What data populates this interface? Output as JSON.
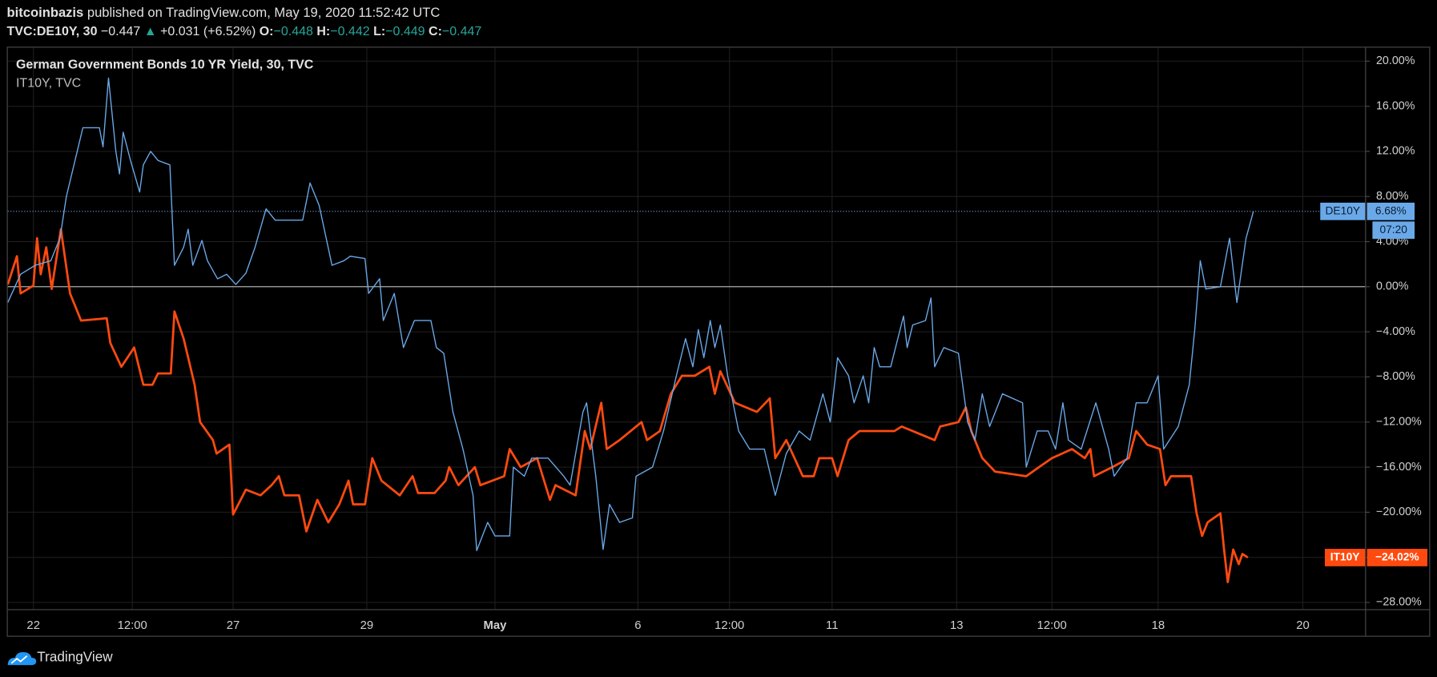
{
  "header": {
    "author": "bitcoinbazis",
    "published": "published on TradingView.com, May 19, 2020 11:52:42 UTC",
    "symbol": "TVC:DE10Y, 30",
    "last": "−0.447",
    "arrow": "▲",
    "change": "+0.031 (+6.52%)",
    "o_label": "O:",
    "o": "−0.448",
    "h_label": "H:",
    "h": "−0.442",
    "l_label": "L:",
    "l": "−0.449",
    "c_label": "C:",
    "c": "−0.447"
  },
  "footer": {
    "brand": "TradingView"
  },
  "chart_data": {
    "type": "line",
    "title": "German Government Bonds 10 YR Yield, 30, TVC",
    "subtitle": "IT10Y, TVC",
    "xlim": [
      0,
      741
    ],
    "xticks": [
      {
        "value": 14,
        "label": "22"
      },
      {
        "value": 68,
        "label": "12:00"
      },
      {
        "value": 123,
        "label": "27"
      },
      {
        "value": 196,
        "label": "29"
      },
      {
        "value": 266,
        "label": "May"
      },
      {
        "value": 344,
        "label": "6"
      },
      {
        "value": 394,
        "label": "12:00"
      },
      {
        "value": 450,
        "label": "11"
      },
      {
        "value": 518,
        "label": "13"
      },
      {
        "value": 570,
        "label": "12:00"
      },
      {
        "value": 628,
        "label": "18"
      },
      {
        "value": 707,
        "label": "20"
      }
    ],
    "ylim": [
      -28.6,
      21.2
    ],
    "yticks": [
      {
        "value": 20,
        "label": "20.00%"
      },
      {
        "value": 16,
        "label": "16.00%"
      },
      {
        "value": 12,
        "label": "12.00%"
      },
      {
        "value": 8,
        "label": "8.00%"
      },
      {
        "value": 4,
        "label": "4.00%"
      },
      {
        "value": 0,
        "label": "0.00%"
      },
      {
        "value": -4,
        "label": "−4.00%"
      },
      {
        "value": -8,
        "label": "−8.00%"
      },
      {
        "value": -12,
        "label": "−12.00%"
      },
      {
        "value": -16,
        "label": "−16.00%"
      },
      {
        "value": -20,
        "label": "−20.00%"
      },
      {
        "value": -24,
        "label": "−24.00%"
      },
      {
        "value": -28,
        "label": "−28.00%"
      }
    ],
    "grid": true,
    "series": [
      {
        "name": "DE10Y",
        "color": "#6aa9e9",
        "price_label": "6.68%",
        "countdown": "07:20",
        "x": [
          0,
          7,
          15,
          23.5,
          28.5,
          32,
          38.5,
          41,
          50,
          52,
          55,
          59,
          61,
          63,
          67,
          72,
          74,
          78,
          82,
          88.5,
          91,
          96,
          98.5,
          101,
          106,
          109,
          114.5,
          119.5,
          124.5,
          130,
          135,
          141,
          146,
          161,
          165,
          170,
          177,
          183.5,
          187,
          195,
          197,
          203,
          205,
          211,
          216,
          222,
          231,
          234,
          238,
          243,
          248.5,
          254,
          256,
          262,
          266,
          274,
          276,
          282,
          286,
          295,
          303.5,
          307,
          314,
          316,
          321,
          325,
          328.5,
          334,
          341,
          343,
          352,
          358,
          365,
          370,
          374,
          377,
          380,
          383.5,
          386,
          389,
          393,
          399,
          405,
          413,
          419,
          425,
          432,
          438,
          445,
          449,
          453,
          459,
          462,
          467,
          470,
          473,
          476,
          482,
          489,
          491,
          494,
          501,
          504,
          506,
          511,
          519,
          524,
          528,
          532,
          536,
          543,
          554,
          556,
          562,
          568,
          572,
          576,
          579,
          586,
          594,
          601,
          604,
          611,
          616,
          622,
          628,
          631,
          639,
          645,
          648,
          651,
          654,
          662,
          667,
          671,
          676,
          680
        ],
        "values": [
          -1.4,
          1.1,
          1.9,
          2.3,
          4.3,
          8.0,
          12.4,
          14.1,
          14.1,
          12.4,
          18.5,
          12.0,
          10.0,
          13.7,
          11.2,
          8.4,
          10.8,
          12.0,
          11.2,
          10.8,
          1.9,
          3.5,
          5.1,
          1.9,
          4.1,
          2.3,
          0.7,
          1.1,
          0.2,
          1.2,
          3.5,
          6.9,
          5.9,
          5.9,
          9.2,
          7.2,
          1.9,
          2.3,
          2.7,
          2.5,
          -0.6,
          0.7,
          -3.0,
          -0.6,
          -5.4,
          -3.0,
          -3.0,
          -5.4,
          -5.9,
          -11.1,
          -14.4,
          -18.5,
          -23.4,
          -20.9,
          -22.1,
          -22.1,
          -16.0,
          -16.8,
          -15.2,
          -15.2,
          -16.8,
          -17.6,
          -11.1,
          -10.3,
          -16.8,
          -23.3,
          -19.3,
          -20.9,
          -20.5,
          -16.8,
          -16.0,
          -12.8,
          -7.9,
          -4.6,
          -7.1,
          -3.8,
          -6.3,
          -3.0,
          -5.4,
          -3.4,
          -7.9,
          -12.8,
          -14.4,
          -14.4,
          -18.5,
          -14.8,
          -12.8,
          -13.6,
          -9.5,
          -12.0,
          -6.3,
          -7.9,
          -10.3,
          -7.9,
          -10.3,
          -5.4,
          -7.1,
          -7.1,
          -2.6,
          -5.4,
          -3.4,
          -3.0,
          -1.0,
          -7.1,
          -5.4,
          -5.9,
          -12.0,
          -13.6,
          -9.5,
          -12.4,
          -9.5,
          -10.3,
          -16.0,
          -12.8,
          -12.8,
          -14.4,
          -10.3,
          -13.6,
          -14.4,
          -10.3,
          -14.4,
          -16.8,
          -15.2,
          -10.3,
          -10.3,
          -7.9,
          -14.4,
          -12.4,
          -8.7,
          -3.8,
          2.3,
          -0.2,
          0.0,
          4.3,
          -1.4,
          4.3,
          6.68
        ]
      },
      {
        "name": "IT10Y",
        "color": "#ff4a0f",
        "price_label": "−24.02%",
        "x": [
          0,
          5,
          7,
          14,
          16,
          18,
          21,
          24,
          29,
          34,
          40,
          54,
          56,
          62,
          69,
          74,
          79,
          82,
          89,
          91,
          96,
          102,
          105,
          112,
          114,
          121,
          123,
          130,
          138,
          144,
          148,
          151,
          159,
          163,
          169,
          175,
          181,
          186,
          188.5,
          195,
          199,
          204,
          214,
          221,
          224,
          233,
          239,
          241,
          246,
          255,
          258,
          271,
          274,
          280,
          289,
          296,
          299,
          310,
          315,
          318,
          324,
          327,
          334,
          346,
          349,
          356,
          362,
          368,
          375,
          383,
          386,
          389,
          397,
          409,
          416,
          419,
          425,
          434,
          440,
          443,
          450,
          453,
          459,
          465,
          484,
          488,
          506,
          509,
          519,
          523,
          526,
          532,
          539,
          556,
          563,
          570,
          581,
          588,
          591,
          593,
          603,
          612,
          616,
          622,
          629,
          632,
          635,
          646,
          649,
          652,
          655,
          662,
          664,
          666,
          669,
          672,
          674,
          677
        ],
        "values": [
          0.2,
          2.7,
          -0.6,
          0.1,
          4.3,
          1.1,
          3.5,
          -0.2,
          5.1,
          -0.6,
          -3.0,
          -2.8,
          -5.0,
          -7.1,
          -5.4,
          -8.7,
          -8.7,
          -7.7,
          -7.7,
          -2.2,
          -4.6,
          -8.7,
          -12.0,
          -13.6,
          -14.8,
          -14.0,
          -20.2,
          -18.0,
          -18.5,
          -17.6,
          -16.8,
          -18.5,
          -18.5,
          -21.7,
          -18.9,
          -20.9,
          -19.3,
          -17.2,
          -19.3,
          -19.3,
          -15.2,
          -17.2,
          -18.5,
          -16.8,
          -18.3,
          -18.3,
          -17.2,
          -16.0,
          -17.6,
          -16.0,
          -17.6,
          -16.8,
          -14.4,
          -16.0,
          -15.2,
          -18.9,
          -17.6,
          -18.5,
          -12.8,
          -14.4,
          -10.3,
          -14.4,
          -13.6,
          -12.0,
          -13.6,
          -12.8,
          -9.5,
          -7.9,
          -7.9,
          -7.1,
          -9.5,
          -7.5,
          -10.3,
          -11.1,
          -9.9,
          -15.2,
          -13.6,
          -16.8,
          -16.8,
          -15.2,
          -15.2,
          -16.8,
          -13.6,
          -12.8,
          -12.8,
          -12.4,
          -13.6,
          -12.4,
          -12.0,
          -10.7,
          -12.8,
          -15.2,
          -16.4,
          -16.8,
          -16.0,
          -15.2,
          -14.4,
          -15.2,
          -14.4,
          -16.8,
          -16.0,
          -15.2,
          -12.8,
          -14.0,
          -14.4,
          -17.6,
          -16.8,
          -16.8,
          -20.1,
          -22.1,
          -20.9,
          -20.1,
          -23.3,
          -26.2,
          -23.3,
          -24.6,
          -23.7,
          -24.02
        ]
      }
    ]
  }
}
